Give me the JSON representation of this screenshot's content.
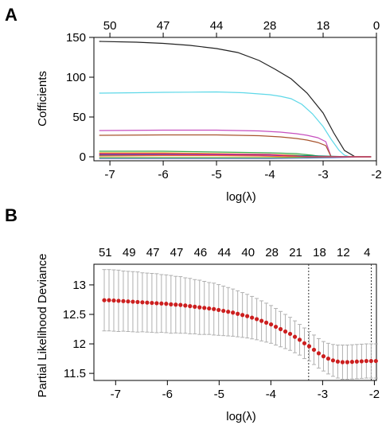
{
  "chart_data": [
    {
      "type": "line",
      "panel_label": "A",
      "xlabel": "log(λ)",
      "ylabel": "Cofficients",
      "xlim": [
        -7.3,
        -2.0
      ],
      "ylim": [
        -5,
        150
      ],
      "x_ticks": [
        -7,
        -6,
        -5,
        -4,
        -3,
        -2
      ],
      "y_ticks": [
        0,
        50,
        100,
        150
      ],
      "top_axis_ticks": [
        {
          "x": -7.0,
          "label": "50"
        },
        {
          "x": -6.0,
          "label": "47"
        },
        {
          "x": -5.0,
          "label": "44"
        },
        {
          "x": -4.0,
          "label": "28"
        },
        {
          "x": -3.0,
          "label": "18"
        },
        {
          "x": -2.0,
          "label": "0"
        }
      ],
      "series": [
        {
          "color": "#222222",
          "x": [
            -7.2,
            -6.5,
            -6.0,
            -5.5,
            -5.0,
            -4.6,
            -4.2,
            -3.9,
            -3.6,
            -3.3,
            -3.0,
            -2.8,
            -2.6,
            -2.4,
            -2.3,
            -2.2,
            -2.1
          ],
          "y": [
            145,
            144,
            142.5,
            140,
            136,
            131,
            121,
            110,
            98,
            80,
            55,
            30,
            8,
            0,
            0,
            0,
            0
          ]
        },
        {
          "color": "#5ed8e8",
          "x": [
            -7.2,
            -6.5,
            -6.0,
            -5.5,
            -5.0,
            -4.5,
            -4.0,
            -3.8,
            -3.6,
            -3.4,
            -3.2,
            -3.0,
            -2.85,
            -2.7,
            -2.6,
            -2.5,
            -2.1
          ],
          "y": [
            80,
            80.5,
            81,
            81.2,
            81.5,
            80.5,
            78,
            76,
            73,
            66,
            54,
            38,
            22,
            8,
            2,
            0,
            0
          ]
        },
        {
          "color": "#c64fbf",
          "x": [
            -7.2,
            -6.0,
            -5.0,
            -4.2,
            -3.8,
            -3.5,
            -3.3,
            -3.1,
            -2.95,
            -2.85,
            -2.1
          ],
          "y": [
            33,
            33.5,
            33.5,
            32.5,
            31,
            29,
            27,
            24,
            19,
            0,
            0
          ]
        },
        {
          "color": "#a8542e",
          "x": [
            -7.2,
            -6.0,
            -5.0,
            -4.2,
            -3.8,
            -3.5,
            -3.3,
            -3.1,
            -2.95,
            -2.85,
            -2.1
          ],
          "y": [
            27,
            27.5,
            27.5,
            26.5,
            25,
            23,
            21,
            18,
            14,
            0,
            0
          ]
        },
        {
          "color": "#3aa84a",
          "x": [
            -7.2,
            -6.0,
            -5.0,
            -4.0,
            -3.5,
            -3.2,
            -3.0,
            -2.1
          ],
          "y": [
            7,
            7,
            6,
            5,
            4,
            2,
            0,
            0
          ]
        },
        {
          "color": "#e6b422",
          "x": [
            -7.2,
            -6.0,
            -5.0,
            -4.0,
            -3.5,
            -3.2,
            -2.1
          ],
          "y": [
            5,
            5,
            4,
            3,
            2,
            0,
            0
          ]
        },
        {
          "color": "#3a5fcd",
          "x": [
            -7.2,
            -6.0,
            -5.0,
            -4.0,
            -3.3,
            -2.8,
            -2.5,
            -2.3,
            -2.1
          ],
          "y": [
            -2,
            -2,
            -2,
            -2,
            -1.5,
            -1,
            -0.5,
            0,
            0
          ]
        },
        {
          "color": "#1f8a70",
          "x": [
            -7.2,
            -6.0,
            -5.0,
            -4.0,
            -3.3,
            -3.0,
            -2.5,
            -2.1
          ],
          "y": [
            2,
            2,
            2,
            2,
            1.5,
            1,
            0,
            0
          ]
        },
        {
          "color": "#8b2fb8",
          "x": [
            -7.2,
            -6.0,
            -5.0,
            -4.0,
            -3.2,
            -2.1
          ],
          "y": [
            3,
            3,
            2.5,
            2,
            0,
            0
          ]
        },
        {
          "color": "#ff6b35",
          "x": [
            -7.2,
            -6.0,
            -5.0,
            -4.2,
            -3.6,
            -2.1
          ],
          "y": [
            1,
            1.5,
            1.5,
            1,
            0,
            0
          ]
        },
        {
          "color": "#7cc242",
          "x": [
            -7.2,
            -6.0,
            -5.0,
            -4.0,
            -3.0,
            -2.6,
            -2.1
          ],
          "y": [
            -1,
            -1,
            -1,
            -1,
            -0.5,
            0,
            0
          ]
        },
        {
          "color": "#d6336c",
          "x": [
            -7.2,
            -6.0,
            -5.0,
            -4.0,
            -3.3,
            -2.1
          ],
          "y": [
            4,
            4,
            3.5,
            3,
            0,
            0
          ]
        }
      ]
    },
    {
      "type": "scatter",
      "panel_label": "B",
      "xlabel": "log(λ)",
      "ylabel": "Partial Likelihood Deviance",
      "xlim": [
        -7.42,
        -1.96
      ],
      "ylim": [
        11.38,
        13.35
      ],
      "x_ticks": [
        -7,
        -6,
        -5,
        -4,
        -3,
        -2
      ],
      "y_ticks": [
        11.5,
        12,
        12.5,
        13
      ],
      "top_axis_ticks": [
        {
          "x": -7.2,
          "label": "51"
        },
        {
          "x": -6.74,
          "label": "49"
        },
        {
          "x": -6.28,
          "label": "47"
        },
        {
          "x": -5.82,
          "label": "47"
        },
        {
          "x": -5.36,
          "label": "46"
        },
        {
          "x": -4.9,
          "label": "44"
        },
        {
          "x": -4.44,
          "label": "40"
        },
        {
          "x": -3.98,
          "label": "28"
        },
        {
          "x": -3.52,
          "label": "21"
        },
        {
          "x": -3.06,
          "label": "18"
        },
        {
          "x": -2.6,
          "label": "12"
        },
        {
          "x": -2.14,
          "label": "4"
        }
      ],
      "vlines_x": [
        -3.27,
        -2.06
      ],
      "point_color": "#cc1f1f",
      "errorbar_color": "#b0b0b0",
      "points": {
        "x_start": -7.22,
        "x_end": -2.06,
        "x_step": 0.0921,
        "mean": [
          12.74,
          12.74,
          12.735,
          12.73,
          12.725,
          12.72,
          12.715,
          12.71,
          12.705,
          12.7,
          12.695,
          12.69,
          12.685,
          12.68,
          12.67,
          12.665,
          12.66,
          12.65,
          12.64,
          12.63,
          12.62,
          12.61,
          12.6,
          12.59,
          12.575,
          12.56,
          12.545,
          12.53,
          12.51,
          12.49,
          12.47,
          12.445,
          12.42,
          12.39,
          12.36,
          12.33,
          12.29,
          12.25,
          12.21,
          12.17,
          12.12,
          12.07,
          12.01,
          11.96,
          11.9,
          11.84,
          11.79,
          11.75,
          11.72,
          11.7,
          11.69,
          11.69,
          11.695,
          11.7,
          11.705,
          11.71,
          11.71,
          11.71
        ],
        "half_width": [
          0.52,
          0.52,
          0.52,
          0.52,
          0.51,
          0.51,
          0.51,
          0.51,
          0.5,
          0.5,
          0.5,
          0.5,
          0.49,
          0.49,
          0.49,
          0.48,
          0.48,
          0.47,
          0.47,
          0.46,
          0.46,
          0.45,
          0.44,
          0.44,
          0.43,
          0.42,
          0.41,
          0.4,
          0.39,
          0.38,
          0.37,
          0.36,
          0.35,
          0.34,
          0.33,
          0.32,
          0.31,
          0.3,
          0.29,
          0.28,
          0.27,
          0.26,
          0.26,
          0.25,
          0.25,
          0.25,
          0.25,
          0.26,
          0.27,
          0.28,
          0.29,
          0.29,
          0.29,
          0.29,
          0.29,
          0.29,
          0.29,
          0.29
        ]
      }
    }
  ]
}
